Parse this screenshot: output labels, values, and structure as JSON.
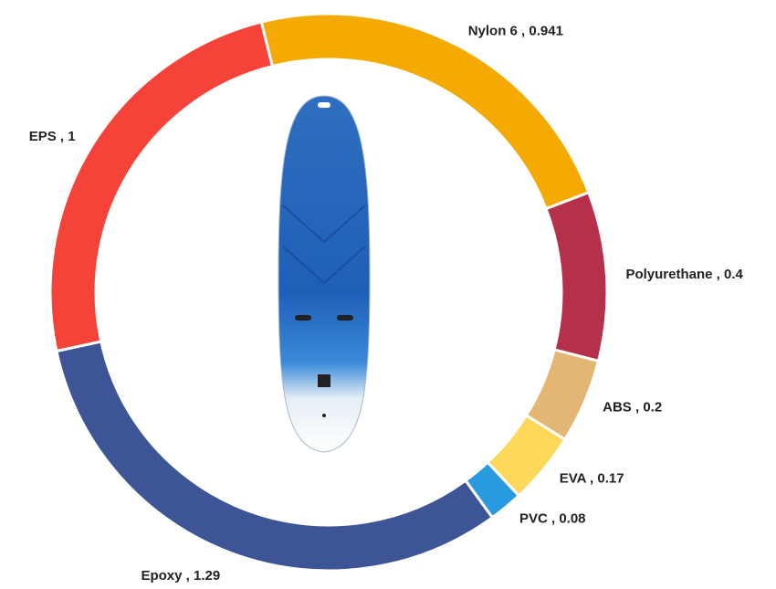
{
  "chart_data": {
    "type": "donut",
    "categories": [
      "Nylon 6",
      "Polyurethane",
      "ABS",
      "EVA",
      "PVC",
      "Epoxy",
      "EPS"
    ],
    "values": [
      0.941,
      0.4,
      0.2,
      0.17,
      0.08,
      1.29,
      1
    ],
    "colors": [
      "#f4aa00",
      "#b5304a",
      "#e3b773",
      "#fdd85b",
      "#2a9ae0",
      "#3d5597",
      "#f5433a"
    ],
    "label_separator": " , "
  }
}
